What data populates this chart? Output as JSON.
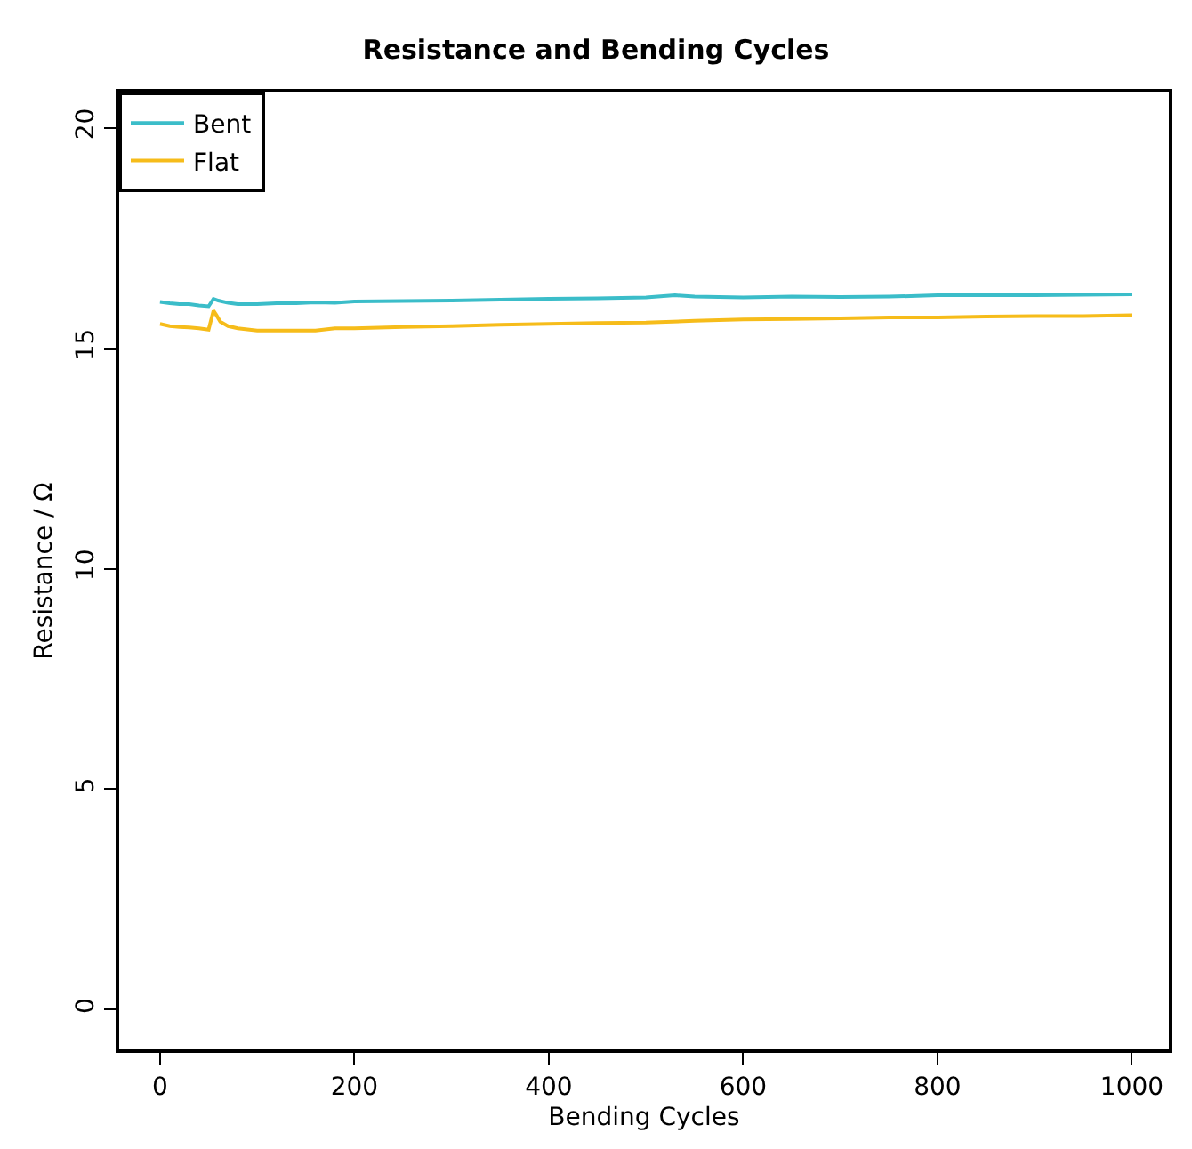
{
  "chart_data": {
    "type": "line",
    "title": "Resistance and Bending Cycles",
    "xlabel": "Bending Cycles",
    "ylabel": "Resistance / Ω",
    "xlim": [
      -42,
      1038
    ],
    "ylim": [
      -0.9,
      20.8
    ],
    "xticks": [
      0,
      200,
      400,
      600,
      800,
      1000
    ],
    "yticks": [
      0,
      5,
      10,
      15,
      20
    ],
    "legend": "top left",
    "series": [
      {
        "name": "Bent",
        "color": "#3bbdc9",
        "x": [
          0,
          10,
          20,
          30,
          40,
          50,
          55,
          60,
          70,
          80,
          100,
          120,
          140,
          160,
          180,
          200,
          250,
          300,
          350,
          400,
          450,
          500,
          530,
          550,
          600,
          650,
          700,
          750,
          800,
          850,
          900,
          950,
          1000
        ],
        "values": [
          16.05,
          16.02,
          16.0,
          16.0,
          15.97,
          15.95,
          16.12,
          16.08,
          16.03,
          16.0,
          16.0,
          16.02,
          16.02,
          16.04,
          16.03,
          16.06,
          16.07,
          16.08,
          16.1,
          16.12,
          16.13,
          16.15,
          16.2,
          16.17,
          16.15,
          16.17,
          16.16,
          16.17,
          16.2,
          16.2,
          16.2,
          16.21,
          16.22
        ]
      },
      {
        "name": "Flat",
        "color": "#f6bc1a",
        "x": [
          0,
          10,
          20,
          30,
          40,
          50,
          55,
          58,
          62,
          70,
          80,
          100,
          120,
          140,
          160,
          180,
          200,
          250,
          300,
          350,
          400,
          450,
          500,
          550,
          600,
          650,
          700,
          750,
          800,
          850,
          900,
          950,
          1000
        ],
        "values": [
          15.55,
          15.5,
          15.48,
          15.47,
          15.45,
          15.42,
          15.85,
          15.75,
          15.6,
          15.5,
          15.45,
          15.4,
          15.4,
          15.4,
          15.4,
          15.45,
          15.45,
          15.48,
          15.5,
          15.53,
          15.55,
          15.57,
          15.58,
          15.62,
          15.65,
          15.66,
          15.68,
          15.7,
          15.7,
          15.72,
          15.73,
          15.73,
          15.75
        ]
      }
    ]
  }
}
